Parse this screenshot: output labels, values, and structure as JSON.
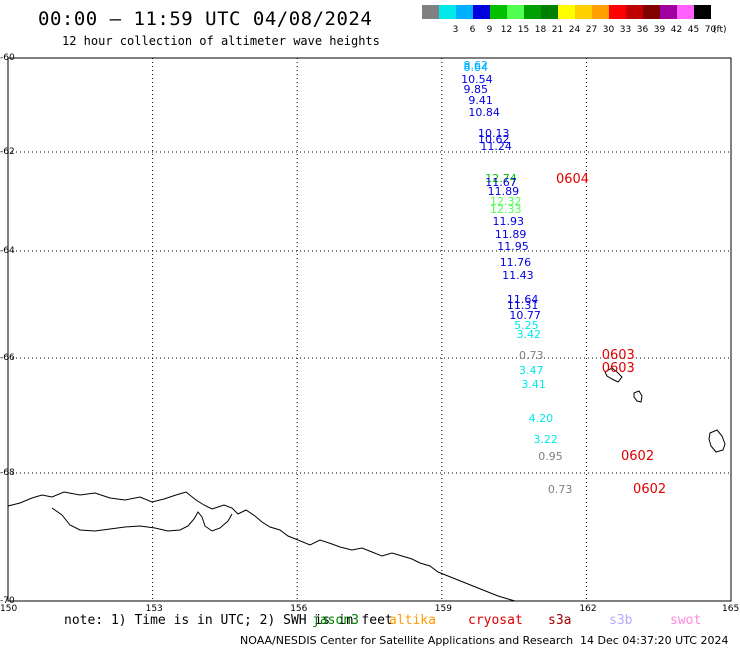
{
  "header": {
    "title": "00:00 — 11:59 UTC 04/08/2024",
    "subtitle": "12 hour collection of altimeter wave heights"
  },
  "color_scale": {
    "unit": "(ft)",
    "swatches": [
      {
        "label": "",
        "color": "#808080"
      },
      {
        "label": "3",
        "color": "#00e8e8"
      },
      {
        "label": "6",
        "color": "#00b0ff"
      },
      {
        "label": "9",
        "color": "#0000e0"
      },
      {
        "label": "12",
        "color": "#00c000"
      },
      {
        "label": "15",
        "color": "#50ff50"
      },
      {
        "label": "18",
        "color": "#00a000"
      },
      {
        "label": "21",
        "color": "#008000"
      },
      {
        "label": "24",
        "color": "#ffff00"
      },
      {
        "label": "27",
        "color": "#ffd000"
      },
      {
        "label": "30",
        "color": "#ffa000"
      },
      {
        "label": "33",
        "color": "#ff0000"
      },
      {
        "label": "36",
        "color": "#c00000"
      },
      {
        "label": "39",
        "color": "#800000"
      },
      {
        "label": "42",
        "color": "#a000a0"
      },
      {
        "label": "45",
        "color": "#ff60ff"
      },
      {
        "label": "70",
        "color": "#000000"
      }
    ]
  },
  "axes": {
    "lat_ticks": [
      "-60",
      "-62",
      "-64",
      "-66",
      "-68",
      "-70"
    ],
    "lon_ticks": [
      "150",
      "153",
      "156",
      "159",
      "162",
      "165"
    ]
  },
  "wave_labels": [
    {
      "text": "8.62",
      "lat": -60.15,
      "lon": 159.7,
      "color": "#00b0ff"
    },
    {
      "text": "8.64",
      "lat": -60.2,
      "lon": 159.7,
      "color": "#00b0ff"
    },
    {
      "text": "10.54",
      "lat": -60.45,
      "lon": 159.65,
      "color": "#0000e0"
    },
    {
      "text": "9.85",
      "lat": -60.65,
      "lon": 159.7,
      "color": "#0000e0"
    },
    {
      "text": "9.41",
      "lat": -60.9,
      "lon": 159.8,
      "color": "#0000e0"
    },
    {
      "text": "10.84",
      "lat": -61.15,
      "lon": 159.8,
      "color": "#0000e0"
    },
    {
      "text": "10.13",
      "lat": -61.6,
      "lon": 160.0,
      "color": "#0000e0"
    },
    {
      "text": "10.62",
      "lat": -61.72,
      "lon": 160.0,
      "color": "#0000e0"
    },
    {
      "text": "11.24",
      "lat": -61.88,
      "lon": 160.05,
      "color": "#0000e0"
    },
    {
      "text": "12.74",
      "lat": -62.52,
      "lon": 160.15,
      "color": "#00c000"
    },
    {
      "text": "11.67",
      "lat": -62.6,
      "lon": 160.15,
      "color": "#0000e0"
    },
    {
      "text": "11.89",
      "lat": -62.78,
      "lon": 160.2,
      "color": "#0000e0"
    },
    {
      "text": "12.32",
      "lat": -62.98,
      "lon": 160.25,
      "color": "#50ff50"
    },
    {
      "text": "12.33",
      "lat": -63.15,
      "lon": 160.25,
      "color": "#50ff50"
    },
    {
      "text": "11.93",
      "lat": -63.4,
      "lon": 160.3,
      "color": "#0000e0"
    },
    {
      "text": "11.89",
      "lat": -63.65,
      "lon": 160.35,
      "color": "#0000e0"
    },
    {
      "text": "11.95",
      "lat": -63.9,
      "lon": 160.4,
      "color": "#0000e0"
    },
    {
      "text": "11.76",
      "lat": -64.2,
      "lon": 160.45,
      "color": "#0000e0"
    },
    {
      "text": "11.43",
      "lat": -64.45,
      "lon": 160.5,
      "color": "#0000e0"
    },
    {
      "text": "11.64",
      "lat": -64.9,
      "lon": 160.6,
      "color": "#0000e0"
    },
    {
      "text": "11.31",
      "lat": -65.0,
      "lon": 160.6,
      "color": "#0000e0"
    },
    {
      "text": "10.77",
      "lat": -65.2,
      "lon": 160.65,
      "color": "#0000e0"
    },
    {
      "text": "5.25",
      "lat": -65.38,
      "lon": 160.75,
      "color": "#00e8e8"
    },
    {
      "text": "3.42",
      "lat": -65.55,
      "lon": 160.8,
      "color": "#00e8e8"
    },
    {
      "text": "0.73",
      "lat": -65.95,
      "lon": 160.85,
      "color": "#808080"
    },
    {
      "text": "3.47",
      "lat": -66.2,
      "lon": 160.85,
      "color": "#00e8e8"
    },
    {
      "text": "3.41",
      "lat": -66.45,
      "lon": 160.9,
      "color": "#00e8e8"
    },
    {
      "text": "4.20",
      "lat": -67.05,
      "lon": 161.05,
      "color": "#00e8e8"
    },
    {
      "text": "3.22",
      "lat": -67.4,
      "lon": 161.15,
      "color": "#00e8e8"
    },
    {
      "text": "0.95",
      "lat": -67.7,
      "lon": 161.25,
      "color": "#808080"
    },
    {
      "text": "0.73",
      "lat": -68.25,
      "lon": 161.45,
      "color": "#808080"
    }
  ],
  "pass_labels": [
    {
      "text": "0604",
      "lat": -62.55,
      "lon": 161.7
    },
    {
      "text": "0603",
      "lat": -65.95,
      "lon": 162.65
    },
    {
      "text": "0603",
      "lat": -66.18,
      "lon": 162.65
    },
    {
      "text": "0602",
      "lat": -67.7,
      "lon": 163.05
    },
    {
      "text": "0602",
      "lat": -68.25,
      "lon": 163.3
    }
  ],
  "footer": {
    "note": "note: 1) Time is in UTC; 2) SWH is in feet",
    "satellites": [
      {
        "name": "jason3",
        "color": "#008000"
      },
      {
        "name": "altika",
        "color": "#ff9900"
      },
      {
        "name": "cryosat",
        "color": "#e00000"
      },
      {
        "name": "s3a",
        "color": "#a00000"
      },
      {
        "name": "s3b",
        "color": "#b8a8ff"
      },
      {
        "name": "swot",
        "color": "#ff88dd"
      }
    ],
    "credit": "NOAA/NESDIS Center for Satellite Applications and Research",
    "timestamp": "14 Dec 04:37:20 UTC 2024"
  }
}
